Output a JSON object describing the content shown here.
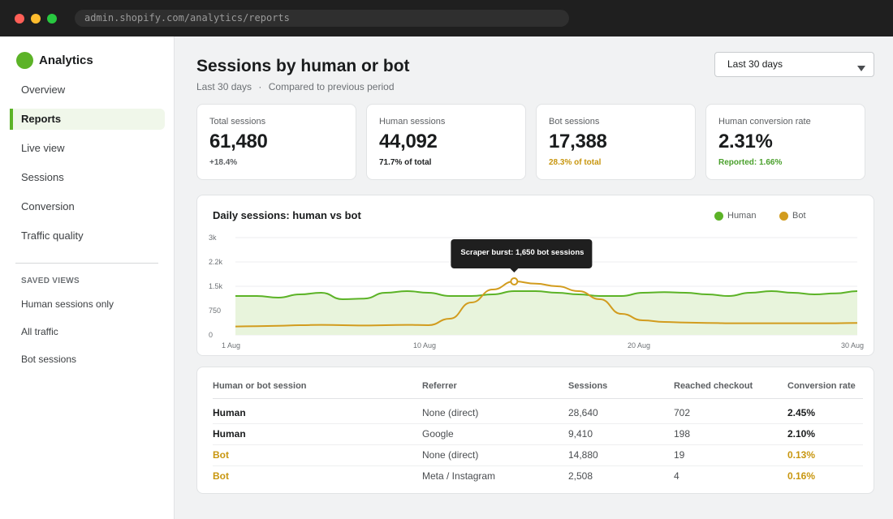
{
  "browser": {
    "url": "admin.shopify.com/analytics/reports"
  },
  "sidebar": {
    "brand": "Analytics",
    "items": [
      {
        "label": "Overview",
        "active": false
      },
      {
        "label": "Reports",
        "active": true
      },
      {
        "label": "Live view",
        "active": false
      },
      {
        "label": "Sessions",
        "active": false
      },
      {
        "label": "Conversion",
        "active": false
      },
      {
        "label": "Traffic quality",
        "active": false
      }
    ],
    "saved_views_label": "SAVED VIEWS",
    "saved_views": [
      "Human sessions only",
      "All traffic",
      "Bot sessions"
    ]
  },
  "header": {
    "title": "Sessions by human or bot",
    "period": "Last 30 days",
    "separator": "·",
    "comparison": "Compared to previous period",
    "date_select": "Last 30 days"
  },
  "kpis": [
    {
      "label": "Total sessions",
      "value": "61,480",
      "foot": "+18.4%",
      "tone": "grey"
    },
    {
      "label": "Human sessions",
      "value": "44,092",
      "foot": "71.7% of total",
      "tone": "dark"
    },
    {
      "label": "Bot sessions",
      "value": "17,388",
      "foot": "28.3% of total",
      "tone": "amber"
    },
    {
      "label": "Human conversion rate",
      "value": "2.31%",
      "foot": "Reported: 1.66%",
      "tone": "green"
    }
  ],
  "colors": {
    "human": "#5cb327",
    "bot": "#d29c1e",
    "human_fill": "#e8f4dc",
    "accent": "#5cb327"
  },
  "chart_data": {
    "type": "area",
    "title": "Daily sessions: human vs bot",
    "x_ticks": [
      "1 Aug",
      "10 Aug",
      "20 Aug",
      "30 Aug"
    ],
    "y_ticks": [
      "0",
      "750",
      "1.5k",
      "2.2k",
      "3k"
    ],
    "ylim": [
      0,
      3000
    ],
    "xlim": [
      1,
      30
    ],
    "grid": true,
    "legend": "top-right",
    "series": [
      {
        "name": "Human",
        "x": [
          1,
          2,
          3,
          4,
          5,
          6,
          7,
          8,
          9,
          10,
          11,
          12,
          13,
          14,
          15,
          16,
          17,
          18,
          19,
          20,
          21,
          22,
          23,
          24,
          25,
          26,
          27,
          28,
          29,
          30
        ],
        "values": [
          1200,
          1200,
          1150,
          1250,
          1300,
          1100,
          1120,
          1300,
          1350,
          1300,
          1200,
          1200,
          1250,
          1350,
          1350,
          1300,
          1250,
          1200,
          1200,
          1300,
          1320,
          1300,
          1250,
          1200,
          1300,
          1350,
          1300,
          1250,
          1280,
          1350
        ]
      },
      {
        "name": "Bot",
        "x": [
          1,
          2,
          3,
          4,
          5,
          6,
          7,
          8,
          9,
          10,
          11,
          12,
          13,
          14,
          15,
          16,
          17,
          18,
          19,
          20,
          21,
          22,
          23,
          24,
          25,
          26,
          27,
          28,
          29,
          30
        ],
        "values": [
          260,
          270,
          280,
          300,
          310,
          300,
          290,
          300,
          310,
          300,
          500,
          1000,
          1400,
          1650,
          1580,
          1500,
          1350,
          1100,
          650,
          450,
          400,
          380,
          370,
          360,
          360,
          360,
          360,
          360,
          360,
          370
        ]
      }
    ],
    "annotation": {
      "text": "Scraper burst: 1,650 bot sessions",
      "x": 14,
      "y": 1650,
      "series": "Bot"
    }
  },
  "table": {
    "columns": [
      "Human or bot session",
      "Referrer",
      "Sessions",
      "Reached checkout",
      "Conversion rate"
    ],
    "rows": [
      {
        "kind": "Human",
        "referrer": "None (direct)",
        "sessions": "28,640",
        "checkout": "702",
        "rate": "2.45%"
      },
      {
        "kind": "Human",
        "referrer": "Google",
        "sessions": "9,410",
        "checkout": "198",
        "rate": "2.10%"
      },
      {
        "kind": "Bot",
        "referrer": "None (direct)",
        "sessions": "14,880",
        "checkout": "19",
        "rate": "0.13%"
      },
      {
        "kind": "Bot",
        "referrer": "Meta / Instagram",
        "sessions": "2,508",
        "checkout": "4",
        "rate": "0.16%"
      }
    ]
  }
}
